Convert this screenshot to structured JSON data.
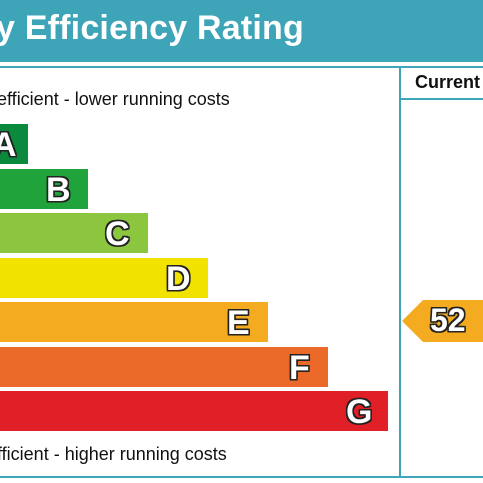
{
  "header": {
    "title": "y Efficiency Rating",
    "color": "#3ea4b8"
  },
  "columns": {
    "current_label": "Current"
  },
  "captions": {
    "top": "efficient - lower running costs",
    "bottom": "fficient - higher running costs"
  },
  "bands": [
    {
      "letter": "A",
      "color": "#0b8a3e"
    },
    {
      "letter": "B",
      "color": "#1fa33a"
    },
    {
      "letter": "C",
      "color": "#8cc63f"
    },
    {
      "letter": "D",
      "color": "#f2e200"
    },
    {
      "letter": "E",
      "color": "#f4ab20"
    },
    {
      "letter": "F",
      "color": "#ec6a29"
    },
    {
      "letter": "G",
      "color": "#e11f27"
    }
  ],
  "current_rating": {
    "value": "52",
    "band": "E",
    "color": "#f4ab20"
  }
}
